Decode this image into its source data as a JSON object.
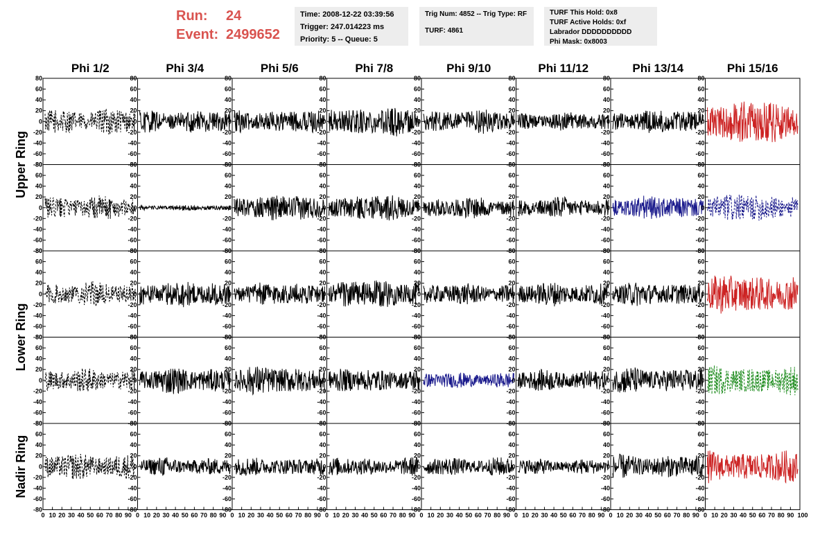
{
  "header": {
    "run_label": "Run:",
    "run_value": "24",
    "event_label": "Event:",
    "event_value": "2499652"
  },
  "info1": [
    "Time: 2008-12-22 03:39:56",
    "Trigger: 247.014223 ms",
    "Priority: 5 -- Queue: 5"
  ],
  "info2": [
    "Trig Num: 4852 -- Trig Type: RF",
    "TURF: 4861"
  ],
  "info3": [
    "TURF This Hold: 0x8",
    "TURF Active Holds: 0xf",
    "Labrador DDDDDDDDDD",
    "Phi Mask: 0x8003"
  ],
  "colors": {
    "black": "#000000",
    "red": "#cc2222",
    "blue": "#1a1a8c",
    "green": "#1f8c1f",
    "header_red": "#d9534f"
  },
  "chart_data": {
    "type": "line",
    "columns": [
      "Phi 1/2",
      "Phi 3/4",
      "Phi 5/6",
      "Phi 7/8",
      "Phi 9/10",
      "Phi 11/12",
      "Phi 13/14",
      "Phi 15/16"
    ],
    "row_groups": [
      {
        "label": "Upper Ring",
        "rows": [
          0,
          1
        ]
      },
      {
        "label": "Lower Ring",
        "rows": [
          2,
          3
        ]
      },
      {
        "label": "Nadir Ring",
        "rows": [
          4
        ]
      }
    ],
    "ylim": [
      -80,
      80
    ],
    "yticks": [
      80,
      60,
      40,
      20,
      0,
      -20,
      -40,
      -60,
      -80
    ],
    "xlim": [
      0,
      100
    ],
    "xticks": [
      0,
      10,
      20,
      30,
      40,
      50,
      60,
      70,
      80,
      90
    ],
    "xtick_last": 100,
    "trace_color": [
      [
        "black",
        "black",
        "black",
        "black",
        "black",
        "black",
        "black",
        "red"
      ],
      [
        "black",
        "black",
        "black",
        "black",
        "black",
        "black",
        "blue",
        "blue"
      ],
      [
        "black",
        "black",
        "black",
        "black",
        "black",
        "black",
        "black",
        "red"
      ],
      [
        "black",
        "black",
        "black",
        "black",
        "blue",
        "black",
        "black",
        "green"
      ],
      [
        "black",
        "black",
        "black",
        "black",
        "black",
        "black",
        "black",
        "red"
      ]
    ],
    "trace_dashed": [
      [
        true,
        false,
        false,
        false,
        false,
        false,
        false,
        false
      ],
      [
        true,
        false,
        false,
        false,
        false,
        false,
        false,
        true
      ],
      [
        true,
        false,
        false,
        false,
        false,
        false,
        false,
        false
      ],
      [
        true,
        false,
        false,
        false,
        false,
        false,
        false,
        true
      ],
      [
        true,
        false,
        false,
        false,
        false,
        false,
        false,
        false
      ]
    ],
    "trace_amplitude": [
      [
        20,
        18,
        18,
        22,
        18,
        14,
        18,
        34
      ],
      [
        18,
        4,
        20,
        20,
        16,
        16,
        18,
        22
      ],
      [
        18,
        20,
        18,
        22,
        16,
        18,
        18,
        30
      ],
      [
        18,
        20,
        22,
        18,
        12,
        16,
        20,
        22
      ],
      [
        20,
        14,
        14,
        14,
        14,
        12,
        18,
        24
      ]
    ]
  }
}
